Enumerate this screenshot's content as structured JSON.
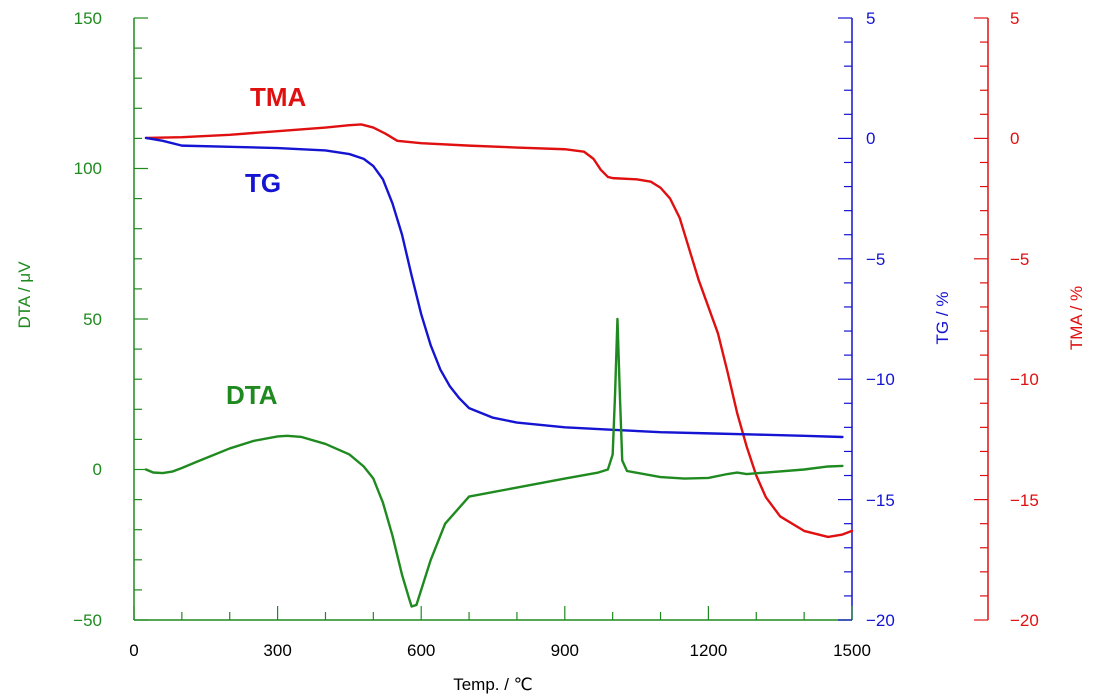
{
  "chart_data": {
    "type": "line",
    "xlabel": "Temp. / ℃",
    "xlim": [
      0,
      1500
    ],
    "x_ticks": [
      "0",
      "300",
      "600",
      "900",
      "1200",
      "1500"
    ],
    "axes": {
      "dta": {
        "label": "DTA / μV",
        "lim": [
          -50,
          150
        ],
        "ticks": [
          "−50",
          "0",
          "50",
          "100",
          "150"
        ],
        "color": "#1f8a1f"
      },
      "tg": {
        "label": "TG / %",
        "lim": [
          -20,
          5
        ],
        "ticks": [
          "−20",
          "−15",
          "−10",
          "−5",
          "0",
          "5"
        ],
        "color": "#1414d2"
      },
      "tma": {
        "label": "TMA / %",
        "lim": [
          -20,
          5
        ],
        "ticks": [
          "−20",
          "−15",
          "−10",
          "−5",
          "0",
          "5"
        ],
        "color": "#e01010"
      }
    },
    "series": [
      {
        "name": "TMA",
        "axis": "tma",
        "color": "#e01010",
        "points": [
          [
            25,
            0.02
          ],
          [
            100,
            0.05
          ],
          [
            200,
            0.15
          ],
          [
            300,
            0.3
          ],
          [
            400,
            0.45
          ],
          [
            450,
            0.55
          ],
          [
            475,
            0.58
          ],
          [
            500,
            0.45
          ],
          [
            525,
            0.2
          ],
          [
            550,
            -0.1
          ],
          [
            600,
            -0.2
          ],
          [
            700,
            -0.3
          ],
          [
            800,
            -0.38
          ],
          [
            900,
            -0.45
          ],
          [
            940,
            -0.55
          ],
          [
            960,
            -0.85
          ],
          [
            975,
            -1.3
          ],
          [
            990,
            -1.6
          ],
          [
            1000,
            -1.65
          ],
          [
            1050,
            -1.7
          ],
          [
            1080,
            -1.8
          ],
          [
            1100,
            -2.05
          ],
          [
            1120,
            -2.5
          ],
          [
            1140,
            -3.3
          ],
          [
            1160,
            -4.6
          ],
          [
            1180,
            -5.9
          ],
          [
            1200,
            -7.0
          ],
          [
            1220,
            -8.1
          ],
          [
            1240,
            -9.7
          ],
          [
            1260,
            -11.4
          ],
          [
            1280,
            -12.8
          ],
          [
            1300,
            -14.0
          ],
          [
            1320,
            -14.9
          ],
          [
            1350,
            -15.7
          ],
          [
            1400,
            -16.3
          ],
          [
            1450,
            -16.55
          ],
          [
            1480,
            -16.45
          ],
          [
            1500,
            -16.3
          ]
        ]
      },
      {
        "name": "TG",
        "axis": "tg",
        "color": "#1414d2",
        "points": [
          [
            25,
            0.02
          ],
          [
            60,
            -0.1
          ],
          [
            100,
            -0.3
          ],
          [
            200,
            -0.35
          ],
          [
            300,
            -0.4
          ],
          [
            400,
            -0.5
          ],
          [
            450,
            -0.65
          ],
          [
            480,
            -0.85
          ],
          [
            500,
            -1.15
          ],
          [
            520,
            -1.7
          ],
          [
            540,
            -2.7
          ],
          [
            560,
            -4.0
          ],
          [
            580,
            -5.7
          ],
          [
            600,
            -7.3
          ],
          [
            620,
            -8.6
          ],
          [
            640,
            -9.6
          ],
          [
            660,
            -10.3
          ],
          [
            680,
            -10.8
          ],
          [
            700,
            -11.2
          ],
          [
            750,
            -11.6
          ],
          [
            800,
            -11.8
          ],
          [
            900,
            -12.0
          ],
          [
            1000,
            -12.1
          ],
          [
            1100,
            -12.2
          ],
          [
            1200,
            -12.25
          ],
          [
            1300,
            -12.3
          ],
          [
            1400,
            -12.35
          ],
          [
            1480,
            -12.4
          ]
        ]
      },
      {
        "name": "DTA",
        "axis": "dta",
        "color": "#1f8a1f",
        "points": [
          [
            25,
            0
          ],
          [
            40,
            -1
          ],
          [
            60,
            -1.2
          ],
          [
            80,
            -0.7
          ],
          [
            100,
            0.5
          ],
          [
            130,
            2.5
          ],
          [
            200,
            7
          ],
          [
            250,
            9.5
          ],
          [
            300,
            11
          ],
          [
            320,
            11.2
          ],
          [
            350,
            10.8
          ],
          [
            400,
            8.5
          ],
          [
            450,
            5
          ],
          [
            480,
            1
          ],
          [
            500,
            -3
          ],
          [
            520,
            -11
          ],
          [
            540,
            -22
          ],
          [
            560,
            -35
          ],
          [
            575,
            -43
          ],
          [
            580,
            -45.5
          ],
          [
            590,
            -45
          ],
          [
            600,
            -40
          ],
          [
            620,
            -30
          ],
          [
            650,
            -18
          ],
          [
            700,
            -9
          ],
          [
            800,
            -6
          ],
          [
            900,
            -3
          ],
          [
            970,
            -1
          ],
          [
            990,
            0
          ],
          [
            1000,
            5
          ],
          [
            1005,
            25
          ],
          [
            1010,
            50
          ],
          [
            1015,
            25
          ],
          [
            1020,
            3
          ],
          [
            1030,
            -0.5
          ],
          [
            1100,
            -2.5
          ],
          [
            1150,
            -3
          ],
          [
            1200,
            -2.8
          ],
          [
            1240,
            -1.5
          ],
          [
            1260,
            -1
          ],
          [
            1280,
            -1.5
          ],
          [
            1320,
            -1
          ],
          [
            1400,
            0
          ],
          [
            1450,
            1
          ],
          [
            1480,
            1.2
          ]
        ]
      }
    ],
    "labels": {
      "tma": "TMA",
      "tg": "TG",
      "dta": "DTA"
    }
  }
}
